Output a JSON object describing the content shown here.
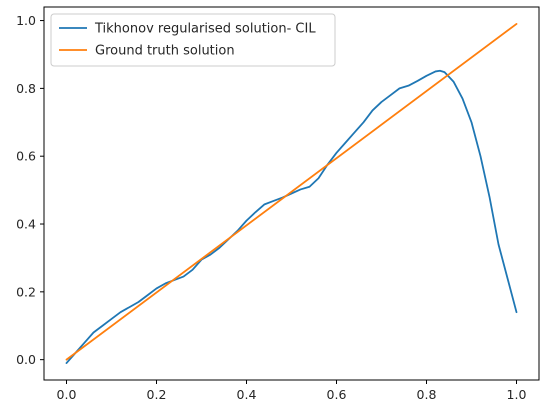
{
  "chart_data": {
    "type": "line",
    "title": "",
    "xlabel": "",
    "ylabel": "",
    "xlim": [
      -0.05,
      1.05
    ],
    "ylim": [
      -0.06,
      1.04
    ],
    "xticks": [
      0.0,
      0.2,
      0.4,
      0.6,
      0.8,
      1.0
    ],
    "xtick_labels": [
      "0.0",
      "0.2",
      "0.4",
      "0.6",
      "0.8",
      "1.0"
    ],
    "yticks": [
      0.0,
      0.2,
      0.4,
      0.6,
      0.8,
      1.0
    ],
    "ytick_labels": [
      "0.0",
      "0.2",
      "0.4",
      "0.6",
      "0.8",
      "1.0"
    ],
    "grid": false,
    "legend_placement": "upper-left",
    "series": [
      {
        "name": "Tikhonov regularised solution- CIL",
        "color": "#1f77b4",
        "x": [
          0.0,
          0.02,
          0.04,
          0.06,
          0.08,
          0.1,
          0.12,
          0.14,
          0.16,
          0.18,
          0.2,
          0.22,
          0.24,
          0.26,
          0.28,
          0.3,
          0.32,
          0.34,
          0.36,
          0.38,
          0.4,
          0.42,
          0.44,
          0.46,
          0.48,
          0.5,
          0.52,
          0.54,
          0.56,
          0.58,
          0.6,
          0.62,
          0.64,
          0.66,
          0.68,
          0.7,
          0.72,
          0.74,
          0.76,
          0.78,
          0.8,
          0.82,
          0.83,
          0.84,
          0.86,
          0.88,
          0.9,
          0.92,
          0.94,
          0.96,
          0.98,
          1.0
        ],
        "y": [
          -0.01,
          0.02,
          0.05,
          0.08,
          0.1,
          0.12,
          0.14,
          0.155,
          0.17,
          0.19,
          0.21,
          0.225,
          0.235,
          0.245,
          0.265,
          0.295,
          0.31,
          0.33,
          0.355,
          0.38,
          0.41,
          0.435,
          0.458,
          0.468,
          0.478,
          0.49,
          0.502,
          0.51,
          0.535,
          0.575,
          0.61,
          0.64,
          0.67,
          0.7,
          0.735,
          0.76,
          0.78,
          0.8,
          0.808,
          0.822,
          0.837,
          0.85,
          0.852,
          0.848,
          0.82,
          0.77,
          0.7,
          0.6,
          0.48,
          0.34,
          0.24,
          0.14
        ]
      },
      {
        "name": "Ground truth solution",
        "color": "#ff7f0e",
        "x": [
          0.0,
          1.0
        ],
        "y": [
          0.0,
          0.99
        ]
      }
    ]
  }
}
